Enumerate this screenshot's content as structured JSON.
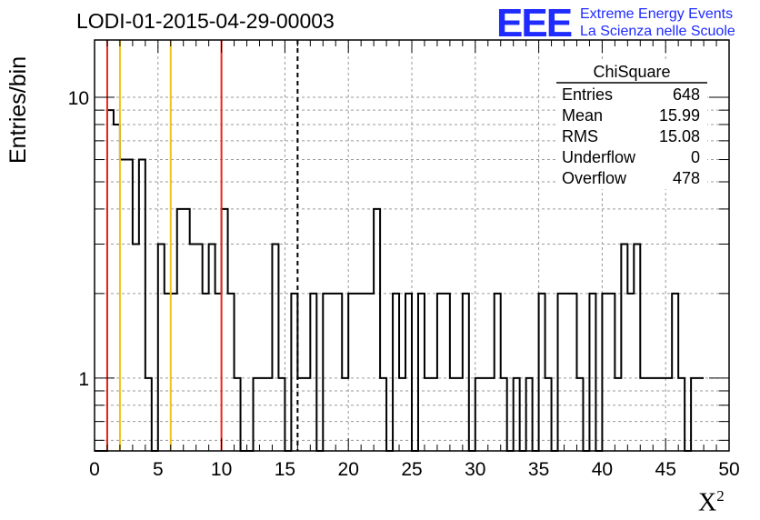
{
  "title": "LODI-01-2015-04-29-00003",
  "logo": {
    "mark": "EEE",
    "line1": "Extreme Energy Events",
    "line2": "La Scienza nelle Scuole",
    "color": "#1f2bff"
  },
  "stats": {
    "name": "ChiSquare",
    "rows": [
      {
        "label": "Entries",
        "value": "648"
      },
      {
        "label": "Mean",
        "value": "15.99"
      },
      {
        "label": "RMS",
        "value": "15.08"
      },
      {
        "label": "Underflow",
        "value": "0"
      },
      {
        "label": "Overflow",
        "value": "478"
      }
    ]
  },
  "chart_data": {
    "type": "histogram",
    "ylabel": "Entries/bin",
    "xlabel": "X",
    "xlabel_sup": "2",
    "xlim": [
      0,
      50
    ],
    "ylim": [
      0.55,
      16
    ],
    "yscale": "log",
    "grid": true,
    "bin_width": 0.5,
    "xticks": [
      0,
      5,
      10,
      15,
      20,
      25,
      30,
      35,
      40,
      45,
      50
    ],
    "yticks": [
      1,
      10
    ],
    "bin_values": [
      0,
      0,
      9,
      8,
      6,
      6,
      3,
      6,
      1,
      0,
      3,
      2,
      2,
      4,
      4,
      3,
      3,
      2,
      3,
      2,
      4,
      2,
      1,
      0,
      0,
      1,
      1,
      1,
      3,
      1,
      0,
      2,
      1,
      1,
      2,
      0,
      2,
      2,
      2,
      1,
      2,
      2,
      2,
      2,
      4,
      1,
      0,
      2,
      1,
      2,
      0,
      2,
      1,
      1,
      2,
      2,
      1,
      1,
      2,
      0,
      1,
      1,
      1,
      2,
      1,
      0,
      1,
      0,
      1,
      0,
      2,
      1,
      0,
      2,
      2,
      2,
      1,
      0,
      2,
      0,
      2,
      2,
      1,
      3,
      2,
      3,
      1,
      1,
      1,
      1,
      1,
      2,
      1,
      0,
      1,
      1
    ],
    "vertical_lines": [
      {
        "x": 1,
        "color": "#e8281e",
        "style": "solid"
      },
      {
        "x": 2,
        "color": "#f2c116",
        "style": "solid"
      },
      {
        "x": 6,
        "color": "#f2c116",
        "style": "solid"
      },
      {
        "x": 10,
        "color": "#e8281e",
        "style": "solid"
      },
      {
        "x": 16,
        "color": "#000000",
        "style": "dashed"
      }
    ]
  }
}
